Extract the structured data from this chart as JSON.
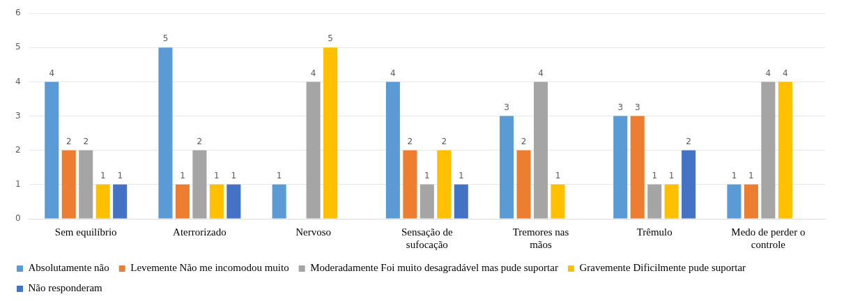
{
  "chart_data": {
    "type": "bar",
    "categories": [
      "Sem equilíbrio",
      "Aterrorizado",
      "Nervoso",
      "Sensação de sufocação",
      "Tremores nas mãos",
      "Trêmulo",
      "Medo de perder o controle"
    ],
    "series": [
      {
        "name": "Absolutamente não",
        "color": "#5b9bd5",
        "values": [
          4,
          5,
          1,
          4,
          3,
          3,
          1
        ]
      },
      {
        "name": "Levemente Não me incomodou muito",
        "color": "#ed7d31",
        "values": [
          2,
          1,
          null,
          2,
          2,
          3,
          1
        ]
      },
      {
        "name": "Moderadamente Foi muito desagradável mas pude suportar",
        "color": "#a5a5a5",
        "values": [
          2,
          2,
          4,
          1,
          4,
          1,
          4
        ]
      },
      {
        "name": "Gravemente Dificilmente pude suportar",
        "color": "#ffc000",
        "values": [
          1,
          1,
          5,
          2,
          1,
          1,
          4
        ]
      },
      {
        "name": "Não responderam",
        "color": "#4472c4",
        "values": [
          1,
          1,
          null,
          1,
          null,
          2,
          null
        ]
      }
    ],
    "ylim": [
      0,
      6
    ],
    "yticks": [
      0,
      1,
      2,
      3,
      4,
      5,
      6
    ],
    "grid": "y",
    "legend": "bottom",
    "data_labels": true
  }
}
